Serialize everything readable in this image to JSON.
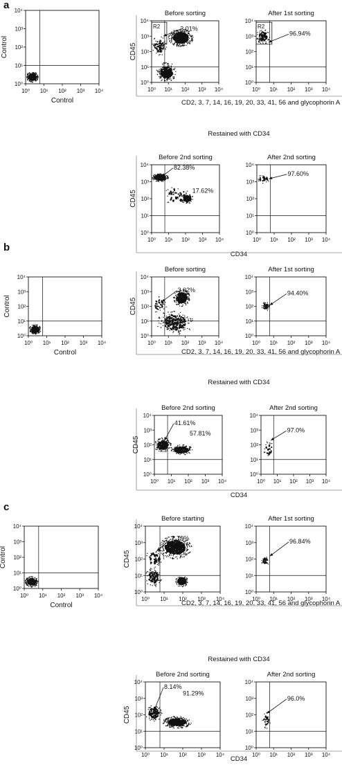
{
  "figure": {
    "panels": [
      {
        "letter": "a",
        "sort1_x_label": "CD2, 3, 7, 14, 16, 19, 20, 33, 41, 56 and glycophorin A",
        "restain_title": "Restained with CD34",
        "sort2_x_label": "CD34"
      },
      {
        "letter": "b",
        "sort1_x_label": "CD2, 3, 7, 14, 16, 19, 20, 33, 41, 56 and glycophorin A",
        "restain_title": "Restained with CD34",
        "sort2_x_label": "CD34"
      },
      {
        "letter": "c",
        "sort1_x_label": "CD2, 3, 7, 14, 16, 19, 20, 33, 41, 56 and glycophorin A",
        "restain_title": "Restained with CD34",
        "sort2_x_label": "CD34"
      }
    ]
  },
  "chart_data": [
    {
      "type": "scatter",
      "panel": "a",
      "title": "",
      "xlabel": "Control",
      "ylabel": "Control",
      "xscale": "log",
      "yscale": "log",
      "xlim": [
        1,
        10000
      ],
      "ylim": [
        1,
        10000
      ],
      "tick_labels": [
        "10⁰",
        "10¹",
        "10²",
        "10³",
        "10⁴"
      ],
      "quadrant": [
        6,
        10
      ],
      "annotations": [],
      "populations": [
        {
          "x": [
            1.1,
            5
          ],
          "y": [
            1.2,
            4.5
          ],
          "n": 300
        }
      ]
    },
    {
      "type": "scatter",
      "panel": "a",
      "title": "Before sorting",
      "xlabel": "",
      "ylabel": "CD45",
      "xscale": "log",
      "yscale": "log",
      "xlim": [
        1,
        10000
      ],
      "ylim": [
        1,
        10000
      ],
      "tick_labels": [
        "10⁰",
        "10¹",
        "10²",
        "10³",
        "10⁴"
      ],
      "quadrant": [
        6,
        10
      ],
      "gate": {
        "label": "R2",
        "x": [
          1,
          8
        ],
        "y": [
          300,
          8000
        ]
      },
      "annotations": [
        {
          "text": "3.01%",
          "x": 50,
          "y": 3000,
          "arrow_to": [
            5,
            1000
          ]
        }
      ],
      "populations": [
        {
          "x": [
            10,
            300
          ],
          "y": [
            200,
            3000
          ],
          "n": 700
        },
        {
          "x": [
            2,
            30
          ],
          "y": [
            1,
            20
          ],
          "n": 350
        },
        {
          "x": [
            1,
            8
          ],
          "y": [
            50,
            1000
          ],
          "n": 80
        }
      ]
    },
    {
      "type": "scatter",
      "panel": "a",
      "title": "After 1st sorting",
      "xlabel": "",
      "ylabel": "",
      "xscale": "log",
      "yscale": "log",
      "xlim": [
        1,
        10000
      ],
      "ylim": [
        1,
        10000
      ],
      "tick_labels": [
        "10⁰",
        "10¹",
        "10²",
        "10³",
        "10⁴"
      ],
      "quadrant": [
        6,
        10
      ],
      "gate": {
        "label": "R2",
        "x": [
          1,
          8
        ],
        "y": [
          300,
          8000
        ]
      },
      "annotations": [
        {
          "text": "96.94%",
          "x": 80,
          "y": 1500,
          "arrow_to": [
            5,
            400
          ]
        }
      ],
      "populations": [
        {
          "x": [
            1,
            6
          ],
          "y": [
            300,
            3000
          ],
          "n": 110
        }
      ]
    },
    {
      "type": "scatter",
      "panel": "a",
      "title": "Before 2nd sorting",
      "xlabel": "",
      "ylabel": "CD45",
      "xscale": "log",
      "yscale": "log",
      "xlim": [
        1,
        10000
      ],
      "ylim": [
        1,
        10000
      ],
      "tick_labels": [
        "10⁰",
        "10¹",
        "10²",
        "10³",
        "10⁴"
      ],
      "quadrant": [
        6,
        10
      ],
      "annotations": [
        {
          "text": "82.38%",
          "x": 20,
          "y": 7000,
          "arrow_to": [
            4,
            2000
          ]
        },
        {
          "text": "17.62%",
          "x": 250,
          "y": 300,
          "arrow_to": null
        }
      ],
      "populations": [
        {
          "x": [
            1,
            10
          ],
          "y": [
            1000,
            3000
          ],
          "n": 450
        },
        {
          "x": [
            50,
            300
          ],
          "y": [
            50,
            200
          ],
          "n": 130
        },
        {
          "x": [
            5,
            200
          ],
          "y": [
            30,
            800
          ],
          "n": 60
        }
      ]
    },
    {
      "type": "scatter",
      "panel": "a",
      "title": "After 2nd sorting",
      "xlabel": "",
      "ylabel": "",
      "xscale": "log",
      "yscale": "log",
      "xlim": [
        1,
        10000
      ],
      "ylim": [
        1,
        10000
      ],
      "tick_labels": [
        "10⁰",
        "10¹",
        "10²",
        "10³",
        "10⁴"
      ],
      "quadrant": [
        6,
        10
      ],
      "annotations": [
        {
          "text": "97.60%",
          "x": 60,
          "y": 3000,
          "arrow_to": [
            5,
            1500
          ]
        }
      ],
      "populations": [
        {
          "x": [
            1,
            6
          ],
          "y": [
            800,
            2500
          ],
          "n": 40
        }
      ]
    },
    {
      "type": "scatter",
      "panel": "b",
      "title": "",
      "xlabel": "Control",
      "ylabel": "Control",
      "xscale": "log",
      "yscale": "log",
      "xlim": [
        1,
        10000
      ],
      "ylim": [
        1,
        10000
      ],
      "tick_labels": [
        "10⁰",
        "10¹",
        "10²",
        "10³",
        "10⁴"
      ],
      "quadrant": [
        6,
        10
      ],
      "annotations": [],
      "populations": [
        {
          "x": [
            1.1,
            5
          ],
          "y": [
            1.2,
            6
          ],
          "n": 300
        }
      ]
    },
    {
      "type": "scatter",
      "panel": "b",
      "title": "Before sorting",
      "xlabel": "",
      "ylabel": "CD45",
      "xscale": "log",
      "yscale": "log",
      "xlim": [
        1,
        10000
      ],
      "ylim": [
        1,
        10000
      ],
      "tick_labels": [
        "10⁰",
        "10¹",
        "10²",
        "10³",
        "10⁴"
      ],
      "quadrant": [
        6,
        10
      ],
      "annotations": [
        {
          "text": "3.02%",
          "x": 35,
          "y": 1300,
          "arrow_to": [
            4,
            200
          ]
        }
      ],
      "populations": [
        {
          "x": [
            20,
            200
          ],
          "y": [
            100,
            1500
          ],
          "n": 350
        },
        {
          "x": [
            2,
            300
          ],
          "y": [
            1,
            60
          ],
          "n": 300
        },
        {
          "x": [
            1,
            8
          ],
          "y": [
            30,
            500
          ],
          "n": 40
        }
      ]
    },
    {
      "type": "scatter",
      "panel": "b",
      "title": "After 1st sorting",
      "xlabel": "",
      "ylabel": "",
      "xscale": "log",
      "yscale": "log",
      "xlim": [
        1,
        10000
      ],
      "ylim": [
        1,
        10000
      ],
      "tick_labels": [
        "10⁰",
        "10¹",
        "10²",
        "10³",
        "10⁴"
      ],
      "quadrant": [
        6,
        10
      ],
      "annotations": [
        {
          "text": "94.40%",
          "x": 60,
          "y": 800,
          "arrow_to": [
            6,
            120
          ]
        }
      ],
      "populations": [
        {
          "x": [
            2,
            6
          ],
          "y": [
            50,
            200
          ],
          "n": 50
        }
      ]
    },
    {
      "type": "scatter",
      "panel": "b",
      "title": "Before 2nd sorting",
      "xlabel": "",
      "ylabel": "CD45",
      "xscale": "log",
      "yscale": "log",
      "xlim": [
        1,
        10000
      ],
      "ylim": [
        1,
        10000
      ],
      "tick_labels": [
        "10⁰",
        "10¹",
        "10²",
        "10³",
        "10⁴"
      ],
      "quadrant": [
        6,
        10
      ],
      "annotations": [
        {
          "text": "41.61%",
          "x": 15,
          "y": 3000,
          "arrow_to": [
            4,
            200
          ]
        },
        {
          "text": "57.81%",
          "x": 120,
          "y": 600,
          "arrow_to": null
        }
      ],
      "populations": [
        {
          "x": [
            1,
            10
          ],
          "y": [
            30,
            300
          ],
          "n": 250
        },
        {
          "x": [
            8,
            200
          ],
          "y": [
            20,
            100
          ],
          "n": 280
        }
      ]
    },
    {
      "type": "scatter",
      "panel": "b",
      "title": "After 2nd sorting",
      "xlabel": "",
      "ylabel": "",
      "xscale": "log",
      "yscale": "log",
      "xlim": [
        1,
        10000
      ],
      "ylim": [
        1,
        10000
      ],
      "tick_labels": [
        "10⁰",
        "10¹",
        "10²",
        "10³",
        "10⁴"
      ],
      "quadrant": [
        6,
        10
      ],
      "annotations": [
        {
          "text": "97.0%",
          "x": 40,
          "y": 1000,
          "arrow_to": [
            4,
            200
          ]
        }
      ],
      "populations": [
        {
          "x": [
            1.5,
            6
          ],
          "y": [
            10,
            250
          ],
          "n": 35
        }
      ]
    },
    {
      "type": "scatter",
      "panel": "c",
      "title": "",
      "xlabel": "Control",
      "ylabel": "Control",
      "xscale": "log",
      "yscale": "log",
      "xlim": [
        1,
        10000
      ],
      "ylim": [
        1,
        10000
      ],
      "tick_labels": [
        "10⁰",
        "10¹",
        "10²",
        "10³",
        "10⁴"
      ],
      "quadrant": [
        6,
        10
      ],
      "annotations": [],
      "populations": [
        {
          "x": [
            1.1,
            6
          ],
          "y": [
            1.2,
            6
          ],
          "n": 380
        }
      ]
    },
    {
      "type": "scatter",
      "panel": "c",
      "title": "Before starting",
      "xlabel": "",
      "ylabel": "CD45",
      "xscale": "log",
      "yscale": "log",
      "xlim": [
        1,
        10000
      ],
      "ylim": [
        1,
        10000
      ],
      "tick_labels": [
        "10⁰",
        "10¹",
        "10²",
        "10³",
        "10⁴"
      ],
      "quadrant": [
        6,
        10
      ],
      "annotations": [
        {
          "text": "2.79%",
          "x": 25,
          "y": 1800,
          "arrow_to": [
            4,
            300
          ]
        }
      ],
      "populations": [
        {
          "x": [
            5,
            300
          ],
          "y": [
            100,
            2500
          ],
          "n": 700
        },
        {
          "x": [
            1,
            8
          ],
          "y": [
            2,
            30
          ],
          "n": 120
        },
        {
          "x": [
            40,
            200
          ],
          "y": [
            2,
            10
          ],
          "n": 220
        },
        {
          "x": [
            1,
            10
          ],
          "y": [
            30,
            400
          ],
          "n": 80
        }
      ]
    },
    {
      "type": "scatter",
      "panel": "c",
      "title": "After 1st sorting",
      "xlabel": "",
      "ylabel": "",
      "xscale": "log",
      "yscale": "log",
      "xlim": [
        1,
        10000
      ],
      "ylim": [
        1,
        10000
      ],
      "tick_labels": [
        "10⁰",
        "10¹",
        "10²",
        "10³",
        "10⁴"
      ],
      "quadrant": [
        6,
        10
      ],
      "annotations": [
        {
          "text": "96.84%",
          "x": 80,
          "y": 1200,
          "arrow_to": [
            6,
            150
          ]
        }
      ],
      "populations": [
        {
          "x": [
            2,
            6
          ],
          "y": [
            40,
            150
          ],
          "n": 40
        }
      ]
    },
    {
      "type": "scatter",
      "panel": "c",
      "title": "Before 2nd sorting",
      "xlabel": "",
      "ylabel": "CD45",
      "xscale": "log",
      "yscale": "log",
      "xlim": [
        1,
        10000
      ],
      "ylim": [
        1,
        10000
      ],
      "tick_labels": [
        "10⁰",
        "10¹",
        "10²",
        "10³",
        "10⁴"
      ],
      "quadrant": [
        6,
        10
      ],
      "annotations": [
        {
          "text": "8.14%",
          "x": 10,
          "y": 5000,
          "arrow_to": [
            3,
            200
          ]
        },
        {
          "text": "91.29%",
          "x": 100,
          "y": 2000,
          "arrow_to": null
        }
      ],
      "populations": [
        {
          "x": [
            8,
            300
          ],
          "y": [
            15,
            80
          ],
          "n": 500
        },
        {
          "x": [
            1,
            8
          ],
          "y": [
            40,
            400
          ],
          "n": 150
        }
      ]
    },
    {
      "type": "scatter",
      "panel": "c",
      "title": "After 2nd sorting",
      "xlabel": "",
      "ylabel": "",
      "xscale": "log",
      "yscale": "log",
      "xlim": [
        1,
        10000
      ],
      "ylim": [
        1,
        10000
      ],
      "tick_labels": [
        "10⁰",
        "10¹",
        "10²",
        "10³",
        "10⁴"
      ],
      "quadrant": [
        6,
        10
      ],
      "annotations": [
        {
          "text": "96.0%",
          "x": 60,
          "y": 1000,
          "arrow_to": [
            4,
            120
          ]
        }
      ],
      "populations": [
        {
          "x": [
            2,
            7
          ],
          "y": [
            15,
            150
          ],
          "n": 30
        }
      ]
    }
  ]
}
